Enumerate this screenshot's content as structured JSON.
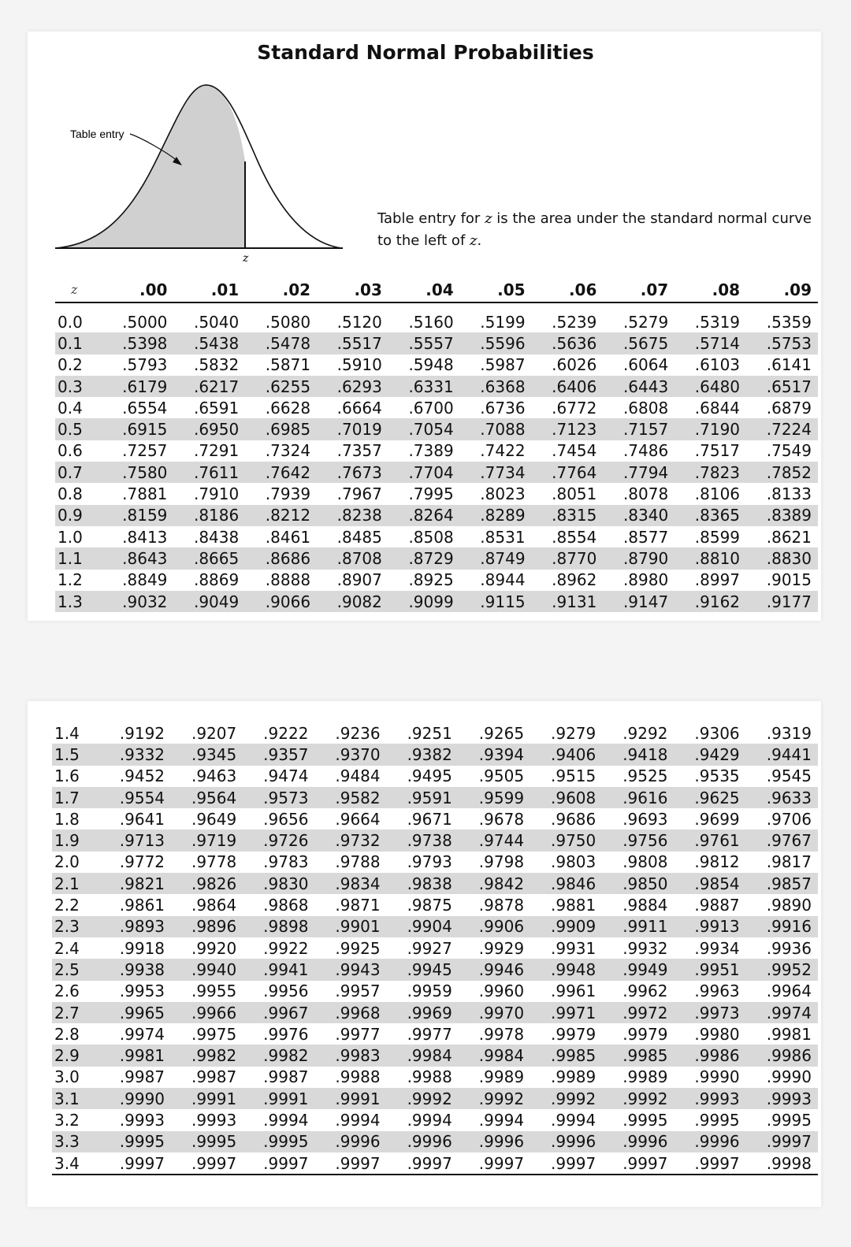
{
  "title": "Standard Normal Probabilities",
  "figure": {
    "entry_label": "Table entry",
    "z_label": "z",
    "caption_pre": "Table entry for ",
    "caption_var": "z",
    "caption_mid": " is the area under the standard normal curve to the left of ",
    "caption_var2": "z",
    "caption_end": "."
  },
  "table": {
    "z_header": "z",
    "columns": [
      ".00",
      ".01",
      ".02",
      ".03",
      ".04",
      ".05",
      ".06",
      ".07",
      ".08",
      ".09"
    ],
    "rows_part1": [
      {
        "z": "0.0",
        "v": [
          ".5000",
          ".5040",
          ".5080",
          ".5120",
          ".5160",
          ".5199",
          ".5239",
          ".5279",
          ".5319",
          ".5359"
        ]
      },
      {
        "z": "0.1",
        "v": [
          ".5398",
          ".5438",
          ".5478",
          ".5517",
          ".5557",
          ".5596",
          ".5636",
          ".5675",
          ".5714",
          ".5753"
        ]
      },
      {
        "z": "0.2",
        "v": [
          ".5793",
          ".5832",
          ".5871",
          ".5910",
          ".5948",
          ".5987",
          ".6026",
          ".6064",
          ".6103",
          ".6141"
        ]
      },
      {
        "z": "0.3",
        "v": [
          ".6179",
          ".6217",
          ".6255",
          ".6293",
          ".6331",
          ".6368",
          ".6406",
          ".6443",
          ".6480",
          ".6517"
        ]
      },
      {
        "z": "0.4",
        "v": [
          ".6554",
          ".6591",
          ".6628",
          ".6664",
          ".6700",
          ".6736",
          ".6772",
          ".6808",
          ".6844",
          ".6879"
        ]
      },
      {
        "z": "0.5",
        "v": [
          ".6915",
          ".6950",
          ".6985",
          ".7019",
          ".7054",
          ".7088",
          ".7123",
          ".7157",
          ".7190",
          ".7224"
        ]
      },
      {
        "z": "0.6",
        "v": [
          ".7257",
          ".7291",
          ".7324",
          ".7357",
          ".7389",
          ".7422",
          ".7454",
          ".7486",
          ".7517",
          ".7549"
        ]
      },
      {
        "z": "0.7",
        "v": [
          ".7580",
          ".7611",
          ".7642",
          ".7673",
          ".7704",
          ".7734",
          ".7764",
          ".7794",
          ".7823",
          ".7852"
        ]
      },
      {
        "z": "0.8",
        "v": [
          ".7881",
          ".7910",
          ".7939",
          ".7967",
          ".7995",
          ".8023",
          ".8051",
          ".8078",
          ".8106",
          ".8133"
        ]
      },
      {
        "z": "0.9",
        "v": [
          ".8159",
          ".8186",
          ".8212",
          ".8238",
          ".8264",
          ".8289",
          ".8315",
          ".8340",
          ".8365",
          ".8389"
        ]
      },
      {
        "z": "1.0",
        "v": [
          ".8413",
          ".8438",
          ".8461",
          ".8485",
          ".8508",
          ".8531",
          ".8554",
          ".8577",
          ".8599",
          ".8621"
        ]
      },
      {
        "z": "1.1",
        "v": [
          ".8643",
          ".8665",
          ".8686",
          ".8708",
          ".8729",
          ".8749",
          ".8770",
          ".8790",
          ".8810",
          ".8830"
        ]
      },
      {
        "z": "1.2",
        "v": [
          ".8849",
          ".8869",
          ".8888",
          ".8907",
          ".8925",
          ".8944",
          ".8962",
          ".8980",
          ".8997",
          ".9015"
        ]
      },
      {
        "z": "1.3",
        "v": [
          ".9032",
          ".9049",
          ".9066",
          ".9082",
          ".9099",
          ".9115",
          ".9131",
          ".9147",
          ".9162",
          ".9177"
        ]
      }
    ],
    "rows_part2": [
      {
        "z": "1.4",
        "v": [
          ".9192",
          ".9207",
          ".9222",
          ".9236",
          ".9251",
          ".9265",
          ".9279",
          ".9292",
          ".9306",
          ".9319"
        ]
      },
      {
        "z": "1.5",
        "v": [
          ".9332",
          ".9345",
          ".9357",
          ".9370",
          ".9382",
          ".9394",
          ".9406",
          ".9418",
          ".9429",
          ".9441"
        ]
      },
      {
        "z": "1.6",
        "v": [
          ".9452",
          ".9463",
          ".9474",
          ".9484",
          ".9495",
          ".9505",
          ".9515",
          ".9525",
          ".9535",
          ".9545"
        ]
      },
      {
        "z": "1.7",
        "v": [
          ".9554",
          ".9564",
          ".9573",
          ".9582",
          ".9591",
          ".9599",
          ".9608",
          ".9616",
          ".9625",
          ".9633"
        ]
      },
      {
        "z": "1.8",
        "v": [
          ".9641",
          ".9649",
          ".9656",
          ".9664",
          ".9671",
          ".9678",
          ".9686",
          ".9693",
          ".9699",
          ".9706"
        ]
      },
      {
        "z": "1.9",
        "v": [
          ".9713",
          ".9719",
          ".9726",
          ".9732",
          ".9738",
          ".9744",
          ".9750",
          ".9756",
          ".9761",
          ".9767"
        ]
      },
      {
        "z": "2.0",
        "v": [
          ".9772",
          ".9778",
          ".9783",
          ".9788",
          ".9793",
          ".9798",
          ".9803",
          ".9808",
          ".9812",
          ".9817"
        ]
      },
      {
        "z": "2.1",
        "v": [
          ".9821",
          ".9826",
          ".9830",
          ".9834",
          ".9838",
          ".9842",
          ".9846",
          ".9850",
          ".9854",
          ".9857"
        ]
      },
      {
        "z": "2.2",
        "v": [
          ".9861",
          ".9864",
          ".9868",
          ".9871",
          ".9875",
          ".9878",
          ".9881",
          ".9884",
          ".9887",
          ".9890"
        ]
      },
      {
        "z": "2.3",
        "v": [
          ".9893",
          ".9896",
          ".9898",
          ".9901",
          ".9904",
          ".9906",
          ".9909",
          ".9911",
          ".9913",
          ".9916"
        ]
      },
      {
        "z": "2.4",
        "v": [
          ".9918",
          ".9920",
          ".9922",
          ".9925",
          ".9927",
          ".9929",
          ".9931",
          ".9932",
          ".9934",
          ".9936"
        ]
      },
      {
        "z": "2.5",
        "v": [
          ".9938",
          ".9940",
          ".9941",
          ".9943",
          ".9945",
          ".9946",
          ".9948",
          ".9949",
          ".9951",
          ".9952"
        ]
      },
      {
        "z": "2.6",
        "v": [
          ".9953",
          ".9955",
          ".9956",
          ".9957",
          ".9959",
          ".9960",
          ".9961",
          ".9962",
          ".9963",
          ".9964"
        ]
      },
      {
        "z": "2.7",
        "v": [
          ".9965",
          ".9966",
          ".9967",
          ".9968",
          ".9969",
          ".9970",
          ".9971",
          ".9972",
          ".9973",
          ".9974"
        ]
      },
      {
        "z": "2.8",
        "v": [
          ".9974",
          ".9975",
          ".9976",
          ".9977",
          ".9977",
          ".9978",
          ".9979",
          ".9979",
          ".9980",
          ".9981"
        ]
      },
      {
        "z": "2.9",
        "v": [
          ".9981",
          ".9982",
          ".9982",
          ".9983",
          ".9984",
          ".9984",
          ".9985",
          ".9985",
          ".9986",
          ".9986"
        ]
      },
      {
        "z": "3.0",
        "v": [
          ".9987",
          ".9987",
          ".9987",
          ".9988",
          ".9988",
          ".9989",
          ".9989",
          ".9989",
          ".9990",
          ".9990"
        ]
      },
      {
        "z": "3.1",
        "v": [
          ".9990",
          ".9991",
          ".9991",
          ".9991",
          ".9992",
          ".9992",
          ".9992",
          ".9992",
          ".9993",
          ".9993"
        ]
      },
      {
        "z": "3.2",
        "v": [
          ".9993",
          ".9993",
          ".9994",
          ".9994",
          ".9994",
          ".9994",
          ".9994",
          ".9995",
          ".9995",
          ".9995"
        ]
      },
      {
        "z": "3.3",
        "v": [
          ".9995",
          ".9995",
          ".9995",
          ".9996",
          ".9996",
          ".9996",
          ".9996",
          ".9996",
          ".9996",
          ".9997"
        ]
      },
      {
        "z": "3.4",
        "v": [
          ".9997",
          ".9997",
          ".9997",
          ".9997",
          ".9997",
          ".9997",
          ".9997",
          ".9997",
          ".9997",
          ".9998"
        ]
      }
    ],
    "shade_color": "#d9d9d9"
  }
}
